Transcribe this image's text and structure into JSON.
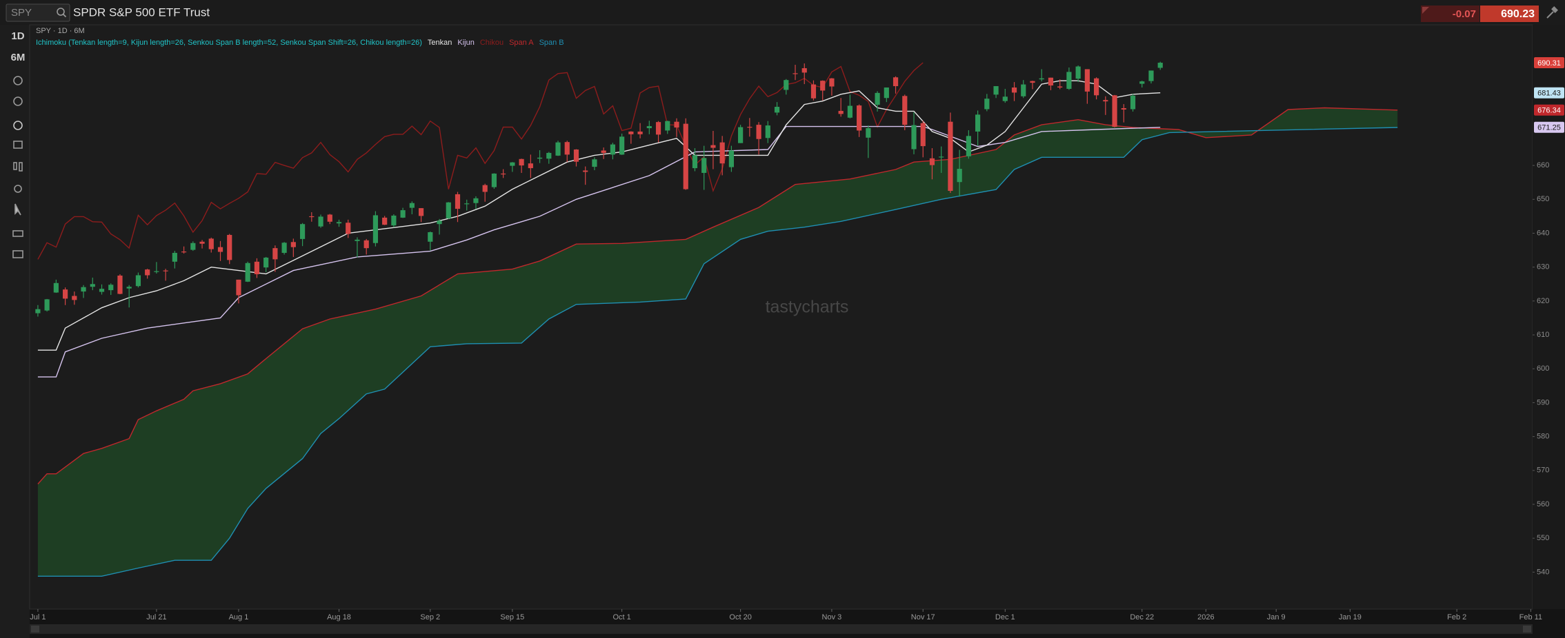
{
  "header": {
    "symbol": "SPY",
    "name": "SPDR S&P 500 ETF Trust",
    "change": -0.07,
    "price": 690.23
  },
  "toolbar": {
    "timeframe": "1D",
    "range": "6M"
  },
  "chart_data": {
    "type": "candlestick",
    "title": "SPY · 1D · 6M",
    "subtitle": "Ichimoku (Tenkan length=9, Kijun length=26, Senkou Span B length=52, Senkou Span Shift=26, Chikou length=26)",
    "watermark": "tastycharts",
    "up_color": "#2e9a5a",
    "down_color": "#d64545",
    "cloud_color": "#1f4a26",
    "open": [
      616.4,
      617.2,
      622.5,
      623.4,
      621.5,
      622.8,
      624.2,
      622.7,
      623.2,
      627.5,
      623.7,
      624.4,
      629.3,
      628.8,
      629.0,
      631.6,
      634.6,
      635.1,
      637.5,
      638.4,
      635.9,
      639.5,
      626.3,
      625.7,
      631.6,
      629.9,
      635.6,
      634.2,
      637.4,
      638.3,
      645.0,
      642.0,
      645.5,
      642.9,
      643.1,
      637.7,
      637.9,
      637.1,
      644.6,
      642.3,
      644.6,
      647.5,
      647.4,
      637.5,
      642.7,
      644.4,
      651.5,
      648.6,
      648.9,
      654.2,
      653.6,
      657.6,
      659.9,
      661.9,
      660.6,
      662.0,
      662.0,
      662.9,
      666.9,
      664.7,
      658.5,
      659.6,
      664.4,
      663.2,
      663.2,
      670.0,
      670.0,
      671.0,
      672.8,
      670.3,
      672.9,
      672.3,
      659.2,
      657.8,
      666.0,
      666.8,
      659.5,
      666.6,
      671.4,
      672.0,
      668.1,
      675.6,
      682.3,
      687.2,
      688.7,
      683.9,
      685.0,
      685.7,
      676.1,
      674.1,
      677.7,
      668.2,
      677.9,
      679.9,
      686.0,
      680.5,
      664.8,
      672.5,
      662.1,
      662.4,
      672.9,
      655.1,
      662.7,
      670.0,
      676.6,
      680.9,
      679.0,
      683.0,
      680.4,
      684.9,
      685.4,
      685.9,
      683.3,
      682.6,
      685.6,
      688.4,
      685.7,
      679.3,
      680.7,
      676.9,
      676.6,
      684.1,
      684.9,
      688.8
    ],
    "high": [
      618.8,
      620.6,
      626.3,
      624.0,
      622.8,
      624.7,
      626.9,
      624.9,
      625.2,
      627.9,
      624.7,
      628.4,
      629.5,
      631.5,
      629.5,
      634.8,
      636.1,
      637.6,
      638.0,
      638.7,
      637.7,
      639.8,
      626.3,
      631.6,
      632.6,
      633.0,
      636.4,
      637.4,
      638.4,
      643.0,
      646.2,
      645.5,
      645.7,
      644.0,
      644.0,
      638.8,
      638.3,
      646.5,
      645.1,
      645.6,
      647.5,
      649.4,
      647.4,
      640.5,
      644.2,
      649.2,
      652.2,
      649.9,
      650.9,
      654.6,
      657.7,
      658.9,
      661.0,
      662.0,
      663.2,
      664.5,
      664.0,
      667.3,
      667.3,
      664.8,
      659.7,
      662.4,
      665.3,
      666.7,
      669.4,
      670.1,
      672.5,
      673.2,
      673.1,
      673.2,
      673.9,
      673.9,
      665.1,
      665.8,
      670.2,
      668.7,
      665.8,
      672.0,
      674.0,
      672.8,
      673.1,
      678.7,
      685.5,
      689.7,
      690.1,
      685.1,
      685.1,
      685.8,
      679.9,
      680.9,
      678.0,
      671.8,
      681.9,
      683.0,
      686.3,
      680.9,
      675.7,
      673.2,
      665.1,
      665.6,
      675.6,
      664.6,
      670.4,
      676.2,
      681.1,
      683.4,
      682.6,
      684.6,
      685.2,
      685.0,
      688.4,
      685.9,
      685.4,
      688.9,
      689.5,
      688.4,
      686.0,
      680.4,
      680.8,
      678.1,
      681.1,
      685.0,
      688.0,
      690.6
    ],
    "low": [
      615.4,
      616.9,
      622.4,
      618.8,
      618.9,
      620.9,
      623.2,
      621.9,
      621.8,
      622.0,
      618.1,
      624.0,
      626.6,
      628.1,
      626.0,
      629.6,
      634.0,
      634.8,
      635.5,
      634.3,
      631.8,
      630.9,
      619.3,
      625.6,
      626.8,
      628.5,
      628.6,
      633.7,
      633.0,
      636.2,
      643.4,
      641.6,
      642.7,
      641.9,
      638.6,
      632.9,
      633.7,
      636.1,
      642.4,
      641.7,
      644.5,
      645.6,
      643.3,
      634.9,
      639.6,
      644.2,
      643.3,
      646.7,
      647.2,
      649.3,
      653.1,
      656.3,
      658.1,
      657.8,
      656.3,
      660.7,
      660.5,
      662.8,
      661.0,
      659.7,
      654.3,
      658.6,
      661.9,
      661.8,
      663.1,
      666.4,
      668.0,
      669.2,
      666.8,
      669.3,
      668.4,
      652.8,
      658.3,
      652.8,
      658.9,
      657.1,
      658.1,
      666.6,
      668.5,
      663.2,
      666.6,
      674.8,
      680.9,
      685.2,
      684.0,
      679.2,
      679.2,
      680.6,
      674.4,
      673.9,
      668.4,
      662.2,
      675.9,
      678.7,
      681.2,
      670.4,
      663.3,
      662.4,
      655.9,
      657.8,
      651.9,
      650.8,
      662.0,
      665.8,
      676.0,
      679.9,
      678.5,
      679.0,
      679.9,
      682.5,
      684.8,
      682.2,
      682.5,
      682.3,
      684.6,
      678.2,
      679.5,
      674.9,
      671.2,
      672.7,
      675.9,
      683.0,
      684.2,
      688.2
    ],
    "close": [
      617.6,
      620.5,
      625.3,
      620.7,
      620.3,
      624.1,
      625.0,
      623.6,
      624.8,
      622.1,
      624.2,
      627.6,
      627.6,
      628.8,
      628.9,
      634.2,
      634.4,
      637.1,
      636.9,
      635.3,
      634.5,
      632.1,
      621.7,
      631.2,
      627.9,
      632.8,
      632.3,
      637.2,
      635.9,
      642.7,
      644.9,
      644.9,
      643.4,
      643.3,
      639.8,
      638.1,
      635.6,
      645.3,
      642.5,
      645.2,
      646.8,
      648.9,
      645.1,
      640.3,
      643.7,
      649.1,
      647.2,
      648.8,
      650.3,
      652.2,
      657.6,
      657.4,
      660.9,
      660.0,
      659.2,
      662.3,
      663.7,
      666.8,
      663.2,
      661.1,
      658.1,
      661.8,
      663.7,
      666.2,
      668.5,
      669.2,
      669.2,
      671.6,
      669.1,
      673.1,
      671.2,
      653.0,
      663.0,
      662.2,
      665.2,
      660.6,
      664.4,
      671.3,
      671.3,
      667.8,
      671.8,
      677.3,
      685.2,
      687.1,
      687.4,
      679.8,
      682.1,
      683.3,
      675.2,
      677.6,
      670.3,
      671.0,
      681.4,
      683.0,
      683.4,
      672.0,
      671.9,
      665.7,
      660.1,
      662.6,
      652.5,
      659.0,
      668.7,
      675.0,
      679.7,
      683.4,
      680.3,
      681.5,
      683.9,
      684.4,
      685.7,
      683.6,
      683.0,
      687.6,
      689.2,
      681.8,
      680.7,
      678.9,
      671.4,
      676.5,
      680.6,
      684.8,
      688.0,
      690.31
    ],
    "series": [
      {
        "name": "Tenkan",
        "color": "#e6e6e6",
        "x": [
          0,
          2,
          3,
          7,
          10,
          13,
          16,
          19,
          22,
          25,
          28,
          31,
          34,
          37,
          40,
          43,
          46,
          49,
          52,
          55,
          58,
          61,
          64,
          67,
          70,
          72,
          77,
          80,
          82,
          84,
          86,
          88,
          90,
          92,
          94,
          96,
          98,
          100,
          102,
          104,
          106,
          108,
          110,
          112,
          114,
          116,
          118,
          120,
          123
        ],
        "values": [
          605.5,
          605.5,
          612,
          618,
          621,
          623,
          626,
          630,
          629,
          628,
          632,
          636,
          640,
          641,
          642,
          643,
          645,
          648,
          653,
          657,
          661,
          663,
          664,
          666,
          668,
          663,
          663,
          663,
          672,
          678,
          679,
          681,
          682,
          677,
          676,
          676,
          670,
          668,
          664,
          666,
          670,
          677,
          684,
          685,
          685,
          684,
          680,
          681,
          681.43
        ]
      },
      {
        "name": "Kijun",
        "color": "#d6c4ef",
        "x": [
          0,
          2,
          3,
          7,
          12,
          20,
          22,
          28,
          35,
          43,
          47,
          50,
          55,
          59,
          67,
          72,
          80,
          82,
          90,
          97,
          98,
          103,
          106,
          110,
          116,
          123
        ],
        "values": [
          597.6,
          597.6,
          605,
          609,
          612,
          615,
          621,
          629,
          633,
          634.7,
          638,
          641,
          645,
          650,
          657,
          664,
          664.7,
          671.5,
          671.5,
          671.5,
          670.6,
          665.6,
          666.8,
          670,
          670.6,
          671.25
        ]
      },
      {
        "name": "Chikou",
        "color": "#8e1c1c",
        "values": [
          632.3,
          637.2,
          635.9,
          642.7,
          644.9,
          644.9,
          643.4,
          643.3,
          639.8,
          638.1,
          635.6,
          645.3,
          642.5,
          645.2,
          646.8,
          648.9,
          645.1,
          640.3,
          643.7,
          649.1,
          647.2,
          648.8,
          650.3,
          652.2,
          657.6,
          657.4,
          660.9,
          660.0,
          659.2,
          662.3,
          663.7,
          666.8,
          663.2,
          661.1,
          658.1,
          661.8,
          663.7,
          666.2,
          668.5,
          669.2,
          669.2,
          671.6,
          669.1,
          673.1,
          671.2,
          653.0,
          663.0,
          662.2,
          665.2,
          660.6,
          664.4,
          671.3,
          671.3,
          667.8,
          671.8,
          677.3,
          685.2,
          687.1,
          687.4,
          679.8,
          682.1,
          683.3,
          675.2,
          677.6,
          670.3,
          671.0,
          681.4,
          683.0,
          683.4,
          672.0,
          671.9,
          665.7,
          660.1,
          662.6,
          652.5,
          659.0,
          668.7,
          675.0,
          679.7,
          683.4,
          680.3,
          681.5,
          683.9,
          684.4,
          685.7,
          683.6,
          683.0,
          687.6,
          689.2,
          681.8,
          680.7,
          678.9,
          671.4,
          676.5,
          680.6,
          684.8,
          688.0,
          690.31
        ]
      },
      {
        "name": "Span A",
        "color": "#c0282c",
        "x": [
          0,
          1,
          2,
          5,
          7,
          10,
          11,
          13,
          16,
          17,
          20,
          23,
          25,
          29,
          32,
          37,
          42,
          46,
          52,
          55,
          59,
          64,
          71,
          74,
          79,
          83,
          89,
          94,
          96,
          100,
          105,
          107,
          110,
          114,
          117,
          120,
          125,
          128,
          133,
          137,
          141,
          149
        ],
        "values": [
          566,
          569,
          569,
          575,
          576.5,
          579.4,
          585,
          587.6,
          591,
          593.5,
          595.6,
          598.5,
          603,
          611.8,
          614.7,
          617.6,
          621.5,
          628,
          629.4,
          631.8,
          636.8,
          637,
          638.2,
          641.8,
          647.6,
          654.4,
          656,
          658.8,
          661,
          661.8,
          664.7,
          669,
          672,
          673.5,
          672,
          671.2,
          670.6,
          668.2,
          669,
          676.5,
          677,
          676.34
        ]
      },
      {
        "name": "Span B",
        "color": "#1f8fb3",
        "x": [
          0,
          7,
          11,
          15,
          19,
          21,
          23,
          25,
          29,
          31,
          33,
          36,
          38,
          43,
          47,
          53,
          56,
          59,
          66,
          71,
          73,
          77,
          80,
          84,
          88,
          94,
          99,
          105,
          107,
          110,
          119,
          121,
          124,
          149
        ],
        "values": [
          538.8,
          538.8,
          541.2,
          543.5,
          543.5,
          550,
          558.8,
          564.7,
          573.5,
          580.9,
          585.3,
          592.6,
          594,
          606.5,
          607.4,
          607.6,
          614.7,
          619,
          619.7,
          620.6,
          631,
          638.2,
          640.6,
          641.8,
          643.5,
          647,
          650,
          652.9,
          658.8,
          662.4,
          662.4,
          667.6,
          669.7,
          671.2
        ]
      }
    ],
    "price_labels": [
      {
        "value": 690.31,
        "color": "#d9403a"
      },
      {
        "value": 681.43,
        "color": "#bfe4f4"
      },
      {
        "value": 676.34,
        "color": "#c0282c"
      },
      {
        "value": 671.25,
        "color": "#d8c8f0"
      }
    ],
    "xlim": [
      -0.9,
      163.8
    ],
    "ylim": [
      529.1,
      701.5
    ],
    "xticks": [
      {
        "value": 0,
        "label": "Jul 1"
      },
      {
        "value": 13,
        "label": "Jul 21"
      },
      {
        "value": 22,
        "label": "Aug 1"
      },
      {
        "value": 33,
        "label": "Aug 18"
      },
      {
        "value": 43,
        "label": "Sep 2"
      },
      {
        "value": 52,
        "label": "Sep 15"
      },
      {
        "value": 64,
        "label": "Oct 1"
      },
      {
        "value": 77,
        "label": "Oct 20"
      },
      {
        "value": 87,
        "label": "Nov 3"
      },
      {
        "value": 97,
        "label": "Nov 17"
      },
      {
        "value": 106,
        "label": "Dec 1"
      },
      {
        "value": 121,
        "label": "Dec 22"
      },
      {
        "value": 128,
        "label": "2026"
      },
      {
        "value": 135.7,
        "label": "Jan 9"
      },
      {
        "value": 143.8,
        "label": "Jan 19"
      },
      {
        "value": 155.5,
        "label": "Feb 2"
      },
      {
        "value": 163.6,
        "label": "Feb 11"
      }
    ],
    "yticks": [
      540,
      550,
      560,
      570,
      580,
      590,
      600,
      610,
      620,
      630,
      640,
      650,
      660
    ]
  }
}
